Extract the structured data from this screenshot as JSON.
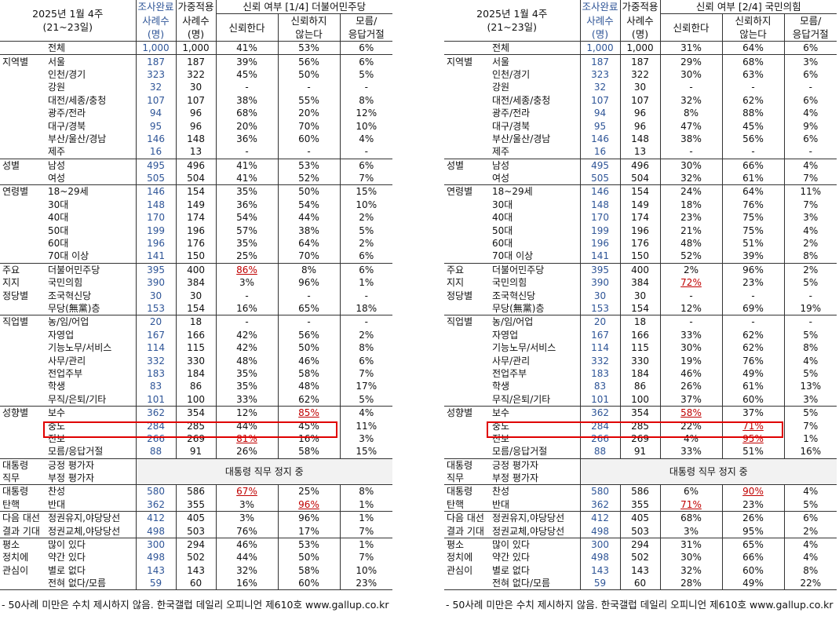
{
  "left": {
    "title1": "2025년 1월 4주",
    "title2": "(21~23일)",
    "h_survey": "조사완료",
    "h_cases": "사례수",
    "h_cases_unit": "(명)",
    "h_weighted1": "가중적용",
    "h_weighted2": "사례수",
    "h_weighted3": "(명)",
    "h_group": "신뢰 여부 [1/4] 더불어민주당",
    "h_trust": "신뢰한다",
    "h_distrust1": "신뢰하지",
    "h_distrust2": "않는다",
    "h_dk1": "모름/",
    "h_dk2": "응답거절",
    "pause_text": "대통령 직무 정지 중",
    "note": "- 50사례 미만은 수치 제시하지 않음. 한국갤럽 데일리 오피니언 제610호 www.gallup.co.kr",
    "rows": [
      {
        "c": "",
        "s": "전체",
        "n": "1,000",
        "w": "1,000",
        "t": "41%",
        "d": "53%",
        "k": "6%",
        "b": "bt"
      },
      {
        "c": "지역별",
        "s": "서울",
        "n": "187",
        "w": "187",
        "t": "39%",
        "d": "56%",
        "k": "6%",
        "b": "bt"
      },
      {
        "c": "",
        "s": "인천/경기",
        "n": "323",
        "w": "322",
        "t": "45%",
        "d": "50%",
        "k": "5%"
      },
      {
        "c": "",
        "s": "강원",
        "n": "32",
        "w": "30",
        "t": "-",
        "d": "-",
        "k": "-"
      },
      {
        "c": "",
        "s": "대전/세종/충청",
        "n": "107",
        "w": "107",
        "t": "38%",
        "d": "55%",
        "k": "8%"
      },
      {
        "c": "",
        "s": "광주/전라",
        "n": "94",
        "w": "96",
        "t": "68%",
        "d": "20%",
        "k": "12%"
      },
      {
        "c": "",
        "s": "대구/경북",
        "n": "95",
        "w": "96",
        "t": "20%",
        "d": "70%",
        "k": "10%"
      },
      {
        "c": "",
        "s": "부산/울산/경남",
        "n": "146",
        "w": "148",
        "t": "36%",
        "d": "60%",
        "k": "4%"
      },
      {
        "c": "",
        "s": "제주",
        "n": "16",
        "w": "13",
        "t": "-",
        "d": "-",
        "k": "-"
      },
      {
        "c": "성별",
        "s": "남성",
        "n": "495",
        "w": "496",
        "t": "41%",
        "d": "53%",
        "k": "6%",
        "b": "bt"
      },
      {
        "c": "",
        "s": "여성",
        "n": "505",
        "w": "504",
        "t": "41%",
        "d": "52%",
        "k": "7%"
      },
      {
        "c": "연령별",
        "s": "18~29세",
        "n": "146",
        "w": "154",
        "t": "35%",
        "d": "50%",
        "k": "15%",
        "b": "bt"
      },
      {
        "c": "",
        "s": "30대",
        "n": "148",
        "w": "149",
        "t": "36%",
        "d": "54%",
        "k": "10%"
      },
      {
        "c": "",
        "s": "40대",
        "n": "170",
        "w": "174",
        "t": "54%",
        "d": "44%",
        "k": "2%"
      },
      {
        "c": "",
        "s": "50대",
        "n": "199",
        "w": "196",
        "t": "57%",
        "d": "38%",
        "k": "5%"
      },
      {
        "c": "",
        "s": "60대",
        "n": "196",
        "w": "176",
        "t": "35%",
        "d": "64%",
        "k": "2%"
      },
      {
        "c": "",
        "s": "70대 이상",
        "n": "141",
        "w": "150",
        "t": "25%",
        "d": "70%",
        "k": "6%"
      },
      {
        "c": "주요",
        "s": "더불어민주당",
        "n": "395",
        "w": "400",
        "t": "86%",
        "d": "8%",
        "k": "6%",
        "b": "bt",
        "ht": true
      },
      {
        "c": "지지",
        "s": "국민의힘",
        "n": "390",
        "w": "384",
        "t": "3%",
        "d": "96%",
        "k": "1%"
      },
      {
        "c": "정당별",
        "s": "조국혁신당",
        "n": "30",
        "w": "30",
        "t": "-",
        "d": "-",
        "k": "-"
      },
      {
        "c": "",
        "s": "무당(無黨)층",
        "n": "153",
        "w": "154",
        "t": "16%",
        "d": "65%",
        "k": "18%"
      },
      {
        "c": "직업별",
        "s": "농/임/어업",
        "n": "20",
        "w": "18",
        "t": "-",
        "d": "-",
        "k": "-",
        "b": "bt"
      },
      {
        "c": "",
        "s": "자영업",
        "n": "167",
        "w": "166",
        "t": "42%",
        "d": "56%",
        "k": "2%"
      },
      {
        "c": "",
        "s": "기능노무/서비스",
        "n": "114",
        "w": "115",
        "t": "42%",
        "d": "50%",
        "k": "8%"
      },
      {
        "c": "",
        "s": "사무/관리",
        "n": "332",
        "w": "330",
        "t": "48%",
        "d": "46%",
        "k": "6%"
      },
      {
        "c": "",
        "s": "전업주부",
        "n": "183",
        "w": "184",
        "t": "35%",
        "d": "58%",
        "k": "7%"
      },
      {
        "c": "",
        "s": "학생",
        "n": "83",
        "w": "86",
        "t": "35%",
        "d": "48%",
        "k": "17%"
      },
      {
        "c": "",
        "s": "무직/은퇴/기타",
        "n": "101",
        "w": "100",
        "t": "33%",
        "d": "62%",
        "k": "5%"
      },
      {
        "c": "성향별",
        "s": "보수",
        "n": "362",
        "w": "354",
        "t": "12%",
        "d": "85%",
        "k": "4%",
        "b": "bt",
        "hd": true
      },
      {
        "c": "",
        "s": "중도",
        "n": "284",
        "w": "285",
        "t": "44%",
        "d": "45%",
        "k": "11%"
      },
      {
        "c": "",
        "s": "진보",
        "n": "266",
        "w": "269",
        "t": "81%",
        "d": "16%",
        "k": "3%",
        "ht": true
      },
      {
        "c": "",
        "s": "모름/응답거절",
        "n": "88",
        "w": "91",
        "t": "26%",
        "d": "58%",
        "k": "15%"
      },
      {
        "c": "대통령",
        "s": "긍정 평가자",
        "n": "",
        "w": "",
        "t": "",
        "d": "",
        "k": "",
        "b": "bt",
        "pause": "start"
      },
      {
        "c": "직무",
        "s": "부정 평가자",
        "n": "",
        "w": "",
        "t": "",
        "d": "",
        "k": "",
        "pause": "skip"
      },
      {
        "c": "대통령",
        "s": "찬성",
        "n": "580",
        "w": "586",
        "t": "67%",
        "d": "25%",
        "k": "8%",
        "b": "bt",
        "ht": true
      },
      {
        "c": "탄핵",
        "s": "반대",
        "n": "362",
        "w": "355",
        "t": "3%",
        "d": "96%",
        "k": "1%",
        "hd": true
      },
      {
        "c": "다음 대선",
        "s": "정권유지,야당당선",
        "n": "412",
        "w": "405",
        "t": "3%",
        "d": "96%",
        "k": "1%",
        "b": "bt"
      },
      {
        "c": "결과 기대",
        "s": "정권교체,야당당선",
        "n": "498",
        "w": "503",
        "t": "76%",
        "d": "17%",
        "k": "7%"
      },
      {
        "c": "평소",
        "s": "많이 있다",
        "n": "300",
        "w": "294",
        "t": "46%",
        "d": "53%",
        "k": "1%",
        "b": "bt"
      },
      {
        "c": "정치에",
        "s": "약간 있다",
        "n": "498",
        "w": "502",
        "t": "44%",
        "d": "50%",
        "k": "7%"
      },
      {
        "c": "관심이",
        "s": "별로 없다",
        "n": "143",
        "w": "143",
        "t": "32%",
        "d": "58%",
        "k": "10%"
      },
      {
        "c": "",
        "s": "전혀 없다/모름",
        "n": "59",
        "w": "60",
        "t": "16%",
        "d": "60%",
        "k": "23%"
      }
    ]
  },
  "right": {
    "title1": "2025년 1월 4주",
    "title2": "(21~23일)",
    "h_survey": "조사완료",
    "h_cases": "사례수",
    "h_cases_unit": "(명)",
    "h_weighted1": "가중적용",
    "h_weighted2": "사례수",
    "h_weighted3": "(명)",
    "h_group": "신뢰 여부 [2/4] 국민의힘",
    "h_trust": "신뢰한다",
    "h_distrust1": "신뢰하지",
    "h_distrust2": "않는다",
    "h_dk1": "모름/",
    "h_dk2": "응답거절",
    "pause_text": "대통령 직무 정지 중",
    "note": "- 50사례 미만은 수치 제시하지 않음. 한국갤럽 데일리 오피니언 제610호 www.gallup.co.kr",
    "rows": [
      {
        "c": "",
        "s": "전체",
        "n": "1,000",
        "w": "1,000",
        "t": "31%",
        "d": "64%",
        "k": "6%",
        "b": "bt"
      },
      {
        "c": "지역별",
        "s": "서울",
        "n": "187",
        "w": "187",
        "t": "29%",
        "d": "68%",
        "k": "3%",
        "b": "bt"
      },
      {
        "c": "",
        "s": "인천/경기",
        "n": "323",
        "w": "322",
        "t": "30%",
        "d": "63%",
        "k": "6%"
      },
      {
        "c": "",
        "s": "강원",
        "n": "32",
        "w": "30",
        "t": "-",
        "d": "-",
        "k": "-"
      },
      {
        "c": "",
        "s": "대전/세종/충청",
        "n": "107",
        "w": "107",
        "t": "32%",
        "d": "62%",
        "k": "6%"
      },
      {
        "c": "",
        "s": "광주/전라",
        "n": "94",
        "w": "96",
        "t": "8%",
        "d": "88%",
        "k": "4%"
      },
      {
        "c": "",
        "s": "대구/경북",
        "n": "95",
        "w": "96",
        "t": "47%",
        "d": "45%",
        "k": "9%"
      },
      {
        "c": "",
        "s": "부산/울산/경남",
        "n": "146",
        "w": "148",
        "t": "38%",
        "d": "56%",
        "k": "6%"
      },
      {
        "c": "",
        "s": "제주",
        "n": "16",
        "w": "13",
        "t": "-",
        "d": "-",
        "k": "-"
      },
      {
        "c": "성별",
        "s": "남성",
        "n": "495",
        "w": "496",
        "t": "30%",
        "d": "66%",
        "k": "4%",
        "b": "bt"
      },
      {
        "c": "",
        "s": "여성",
        "n": "505",
        "w": "504",
        "t": "32%",
        "d": "61%",
        "k": "7%"
      },
      {
        "c": "연령별",
        "s": "18~29세",
        "n": "146",
        "w": "154",
        "t": "24%",
        "d": "64%",
        "k": "11%",
        "b": "bt"
      },
      {
        "c": "",
        "s": "30대",
        "n": "148",
        "w": "149",
        "t": "18%",
        "d": "76%",
        "k": "7%"
      },
      {
        "c": "",
        "s": "40대",
        "n": "170",
        "w": "174",
        "t": "23%",
        "d": "75%",
        "k": "3%"
      },
      {
        "c": "",
        "s": "50대",
        "n": "199",
        "w": "196",
        "t": "21%",
        "d": "75%",
        "k": "4%"
      },
      {
        "c": "",
        "s": "60대",
        "n": "196",
        "w": "176",
        "t": "48%",
        "d": "51%",
        "k": "2%"
      },
      {
        "c": "",
        "s": "70대 이상",
        "n": "141",
        "w": "150",
        "t": "52%",
        "d": "39%",
        "k": "8%"
      },
      {
        "c": "주요",
        "s": "더불어민주당",
        "n": "395",
        "w": "400",
        "t": "2%",
        "d": "96%",
        "k": "2%",
        "b": "bt"
      },
      {
        "c": "지지",
        "s": "국민의힘",
        "n": "390",
        "w": "384",
        "t": "72%",
        "d": "23%",
        "k": "5%",
        "ht": true
      },
      {
        "c": "정당별",
        "s": "조국혁신당",
        "n": "30",
        "w": "30",
        "t": "-",
        "d": "-",
        "k": "-"
      },
      {
        "c": "",
        "s": "무당(無黨)층",
        "n": "153",
        "w": "154",
        "t": "12%",
        "d": "69%",
        "k": "19%"
      },
      {
        "c": "직업별",
        "s": "농/임/어업",
        "n": "20",
        "w": "18",
        "t": "-",
        "d": "-",
        "k": "-",
        "b": "bt"
      },
      {
        "c": "",
        "s": "자영업",
        "n": "167",
        "w": "166",
        "t": "33%",
        "d": "62%",
        "k": "5%"
      },
      {
        "c": "",
        "s": "기능노무/서비스",
        "n": "114",
        "w": "115",
        "t": "30%",
        "d": "62%",
        "k": "8%"
      },
      {
        "c": "",
        "s": "사무/관리",
        "n": "332",
        "w": "330",
        "t": "19%",
        "d": "76%",
        "k": "4%"
      },
      {
        "c": "",
        "s": "전업주부",
        "n": "183",
        "w": "184",
        "t": "46%",
        "d": "49%",
        "k": "5%"
      },
      {
        "c": "",
        "s": "학생",
        "n": "83",
        "w": "86",
        "t": "26%",
        "d": "61%",
        "k": "13%"
      },
      {
        "c": "",
        "s": "무직/은퇴/기타",
        "n": "101",
        "w": "100",
        "t": "37%",
        "d": "60%",
        "k": "3%"
      },
      {
        "c": "성향별",
        "s": "보수",
        "n": "362",
        "w": "354",
        "t": "58%",
        "d": "37%",
        "k": "5%",
        "b": "bt",
        "ht": true
      },
      {
        "c": "",
        "s": "중도",
        "n": "284",
        "w": "285",
        "t": "22%",
        "d": "71%",
        "k": "7%",
        "hd": true
      },
      {
        "c": "",
        "s": "진보",
        "n": "266",
        "w": "269",
        "t": "4%",
        "d": "95%",
        "k": "1%",
        "hd": true
      },
      {
        "c": "",
        "s": "모름/응답거절",
        "n": "88",
        "w": "91",
        "t": "33%",
        "d": "51%",
        "k": "16%"
      },
      {
        "c": "대통령",
        "s": "긍정 평가자",
        "n": "",
        "w": "",
        "t": "",
        "d": "",
        "k": "",
        "b": "bt",
        "pause": "start"
      },
      {
        "c": "직무",
        "s": "부정 평가자",
        "n": "",
        "w": "",
        "t": "",
        "d": "",
        "k": "",
        "pause": "skip"
      },
      {
        "c": "대통령",
        "s": "찬성",
        "n": "580",
        "w": "586",
        "t": "6%",
        "d": "90%",
        "k": "4%",
        "b": "bt",
        "hd": true
      },
      {
        "c": "탄핵",
        "s": "반대",
        "n": "362",
        "w": "355",
        "t": "71%",
        "d": "23%",
        "k": "5%",
        "ht": true
      },
      {
        "c": "다음 대선",
        "s": "정권유지,야당당선",
        "n": "412",
        "w": "405",
        "t": "68%",
        "d": "26%",
        "k": "6%",
        "b": "bt"
      },
      {
        "c": "결과 기대",
        "s": "정권교체,야당당선",
        "n": "498",
        "w": "503",
        "t": "3%",
        "d": "95%",
        "k": "2%"
      },
      {
        "c": "평소",
        "s": "많이 있다",
        "n": "300",
        "w": "294",
        "t": "31%",
        "d": "65%",
        "k": "4%",
        "b": "bt"
      },
      {
        "c": "정치에",
        "s": "약간 있다",
        "n": "498",
        "w": "502",
        "t": "30%",
        "d": "66%",
        "k": "4%"
      },
      {
        "c": "관심이",
        "s": "별로 없다",
        "n": "143",
        "w": "143",
        "t": "32%",
        "d": "60%",
        "k": "8%"
      },
      {
        "c": "",
        "s": "전혀 없다/모름",
        "n": "59",
        "w": "60",
        "t": "28%",
        "d": "49%",
        "k": "22%"
      }
    ]
  }
}
